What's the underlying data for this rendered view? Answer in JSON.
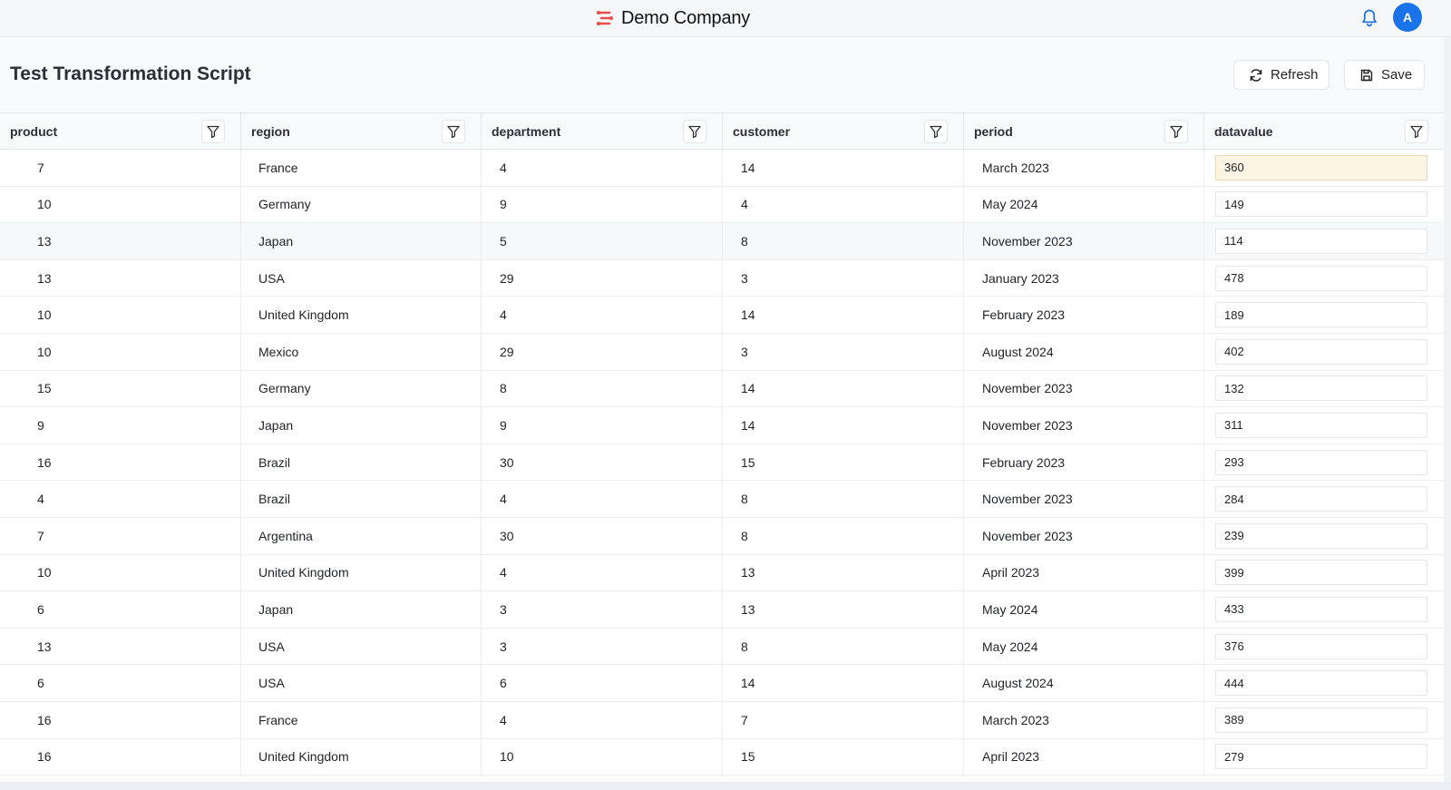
{
  "header": {
    "company_name": "Demo Company",
    "avatar_initial": "A",
    "brand_color": "#e94b4b",
    "avatar_color": "#1a73e8"
  },
  "page": {
    "title": "Test Transformation Script",
    "refresh_label": "Refresh",
    "save_label": "Save"
  },
  "table": {
    "columns": [
      "product",
      "region",
      "department",
      "customer",
      "period",
      "datavalue"
    ],
    "rows": [
      {
        "product": "7",
        "region": "France",
        "department": "4",
        "customer": "14",
        "period": "March 2023",
        "datavalue": "360"
      },
      {
        "product": "10",
        "region": "Germany",
        "department": "9",
        "customer": "4",
        "period": "May 2024",
        "datavalue": "149"
      },
      {
        "product": "13",
        "region": "Japan",
        "department": "5",
        "customer": "8",
        "period": "November 2023",
        "datavalue": "114"
      },
      {
        "product": "13",
        "region": "USA",
        "department": "29",
        "customer": "3",
        "period": "January 2023",
        "datavalue": "478"
      },
      {
        "product": "10",
        "region": "United Kingdom",
        "department": "4",
        "customer": "14",
        "period": "February 2023",
        "datavalue": "189"
      },
      {
        "product": "10",
        "region": "Mexico",
        "department": "29",
        "customer": "3",
        "period": "August 2024",
        "datavalue": "402"
      },
      {
        "product": "15",
        "region": "Germany",
        "department": "8",
        "customer": "14",
        "period": "November 2023",
        "datavalue": "132"
      },
      {
        "product": "9",
        "region": "Japan",
        "department": "9",
        "customer": "14",
        "period": "November 2023",
        "datavalue": "311"
      },
      {
        "product": "16",
        "region": "Brazil",
        "department": "30",
        "customer": "15",
        "period": "February 2023",
        "datavalue": "293"
      },
      {
        "product": "4",
        "region": "Brazil",
        "department": "4",
        "customer": "8",
        "period": "November 2023",
        "datavalue": "284"
      },
      {
        "product": "7",
        "region": "Argentina",
        "department": "30",
        "customer": "8",
        "period": "November 2023",
        "datavalue": "239"
      },
      {
        "product": "10",
        "region": "United Kingdom",
        "department": "4",
        "customer": "13",
        "period": "April 2023",
        "datavalue": "399"
      },
      {
        "product": "6",
        "region": "Japan",
        "department": "3",
        "customer": "13",
        "period": "May 2024",
        "datavalue": "433"
      },
      {
        "product": "13",
        "region": "USA",
        "department": "3",
        "customer": "8",
        "period": "May 2024",
        "datavalue": "376"
      },
      {
        "product": "6",
        "region": "USA",
        "department": "6",
        "customer": "14",
        "period": "August 2024",
        "datavalue": "444"
      },
      {
        "product": "16",
        "region": "France",
        "department": "4",
        "customer": "7",
        "period": "March 2023",
        "datavalue": "389"
      },
      {
        "product": "16",
        "region": "United Kingdom",
        "department": "10",
        "customer": "15",
        "period": "April 2023",
        "datavalue": "279"
      }
    ],
    "active_row": 0,
    "hover_row": 2
  }
}
